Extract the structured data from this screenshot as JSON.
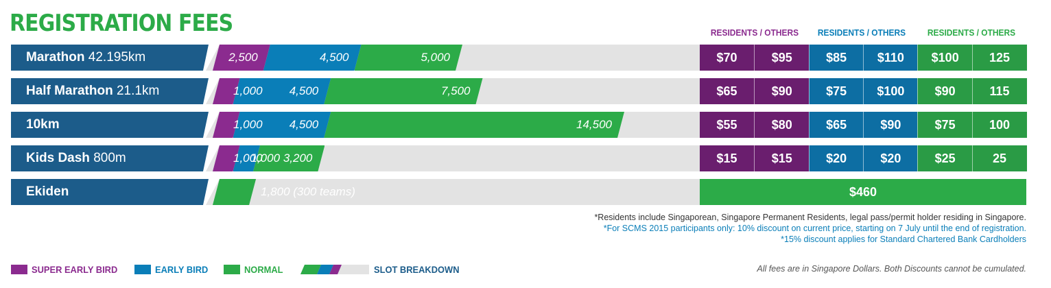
{
  "title": "REGISTRATION FEES",
  "colors": {
    "super_early": "#8b2b8f",
    "early": "#0a7eb8",
    "normal": "#2cab48",
    "label_bg": "#1c5c8a",
    "track": "#e3e3e3",
    "fee_super_early": "#6a1e6e",
    "fee_early": "#0d6ea3",
    "fee_normal": "#2a9b45"
  },
  "fee_headers": [
    {
      "text": "RESIDENTS / OTHERS",
      "color": "#8b2b8f"
    },
    {
      "text": "RESIDENTS / OTHERS",
      "color": "#0a7eb8"
    },
    {
      "text": "RESIDENTS / OTHERS",
      "color": "#2cab48"
    }
  ],
  "chart_data": {
    "type": "bar",
    "title": "REGISTRATION FEES",
    "categories": [
      "Marathon 42.195km",
      "Half Marathon 21.1km",
      "10km",
      "Kids Dash 800m",
      "Ekiden"
    ],
    "series": [
      {
        "name": "SUPER EARLY BIRD",
        "values": [
          2500,
          1000,
          1000,
          1000,
          null
        ]
      },
      {
        "name": "EARLY BIRD",
        "values": [
          4500,
          4500,
          4500,
          1000,
          null
        ]
      },
      {
        "name": "NORMAL",
        "values": [
          5000,
          7500,
          14500,
          3200,
          1800
        ]
      }
    ],
    "slot_labels": [
      [
        "2,500",
        "4,500",
        "5,000"
      ],
      [
        "1,000",
        "4,500",
        "7,500"
      ],
      [
        "1,000",
        "4,500",
        "14,500"
      ],
      [
        "1,000",
        "1,000",
        "3,200"
      ],
      [
        "",
        "",
        "1,800 (300 teams)"
      ]
    ],
    "legend_position": "bottom-left"
  },
  "rows": [
    {
      "name": "Marathon",
      "sub": " 42.195km",
      "fees": [
        "$70",
        "$95",
        "$85",
        "$110",
        "$100",
        "125"
      ]
    },
    {
      "name": "Half Marathon",
      "sub": " 21.1km",
      "fees": [
        "$65",
        "$90",
        "$75",
        "$100",
        "$90",
        "115"
      ]
    },
    {
      "name": "10km",
      "sub": "",
      "fees": [
        "$55",
        "$80",
        "$65",
        "$90",
        "$75",
        "100"
      ]
    },
    {
      "name": "Kids Dash",
      "sub": " 800m",
      "fees": [
        "$15",
        "$15",
        "$20",
        "$20",
        "$25",
        "25"
      ]
    },
    {
      "name": "Ekiden",
      "sub": "",
      "fee_single": "$460"
    }
  ],
  "notes": [
    {
      "text": "*Residents include Singaporean, Singapore Permanent Residents, legal pass/permit holder residing in Singapore.",
      "color": "#333333"
    },
    {
      "text": "*For SCMS 2015 participants only: 10% discount on current price, starting on 7 July until the end of registration.",
      "color": "#0a7eb8"
    },
    {
      "text": "*15% discount applies for Standard Chartered Bank Cardholders",
      "color": "#0a7eb8"
    }
  ],
  "legend": [
    {
      "label": "SUPER EARLY BIRD",
      "color": "#8b2b8f"
    },
    {
      "label": "EARLY BIRD",
      "color": "#0a7eb8"
    },
    {
      "label": "NORMAL",
      "color": "#2cab48"
    },
    {
      "label": "SLOT BREAKDOWN",
      "color": "#1c5c8a"
    }
  ],
  "footnote": "All fees are in Singapore Dollars. Both Discounts cannot be cumulated."
}
